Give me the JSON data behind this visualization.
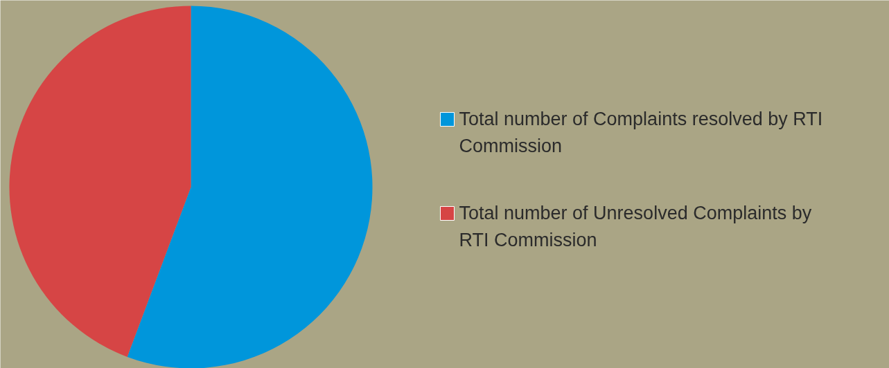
{
  "chart_data": {
    "type": "pie",
    "categories": [
      "Total number of Complaints resolved by RTI Commission",
      "Total number of Unresolved Complaints by RTI Commission"
    ],
    "values": [
      55.7,
      44.3
    ],
    "colors": [
      "#0096db",
      "#d64545"
    ],
    "legend": "right"
  }
}
